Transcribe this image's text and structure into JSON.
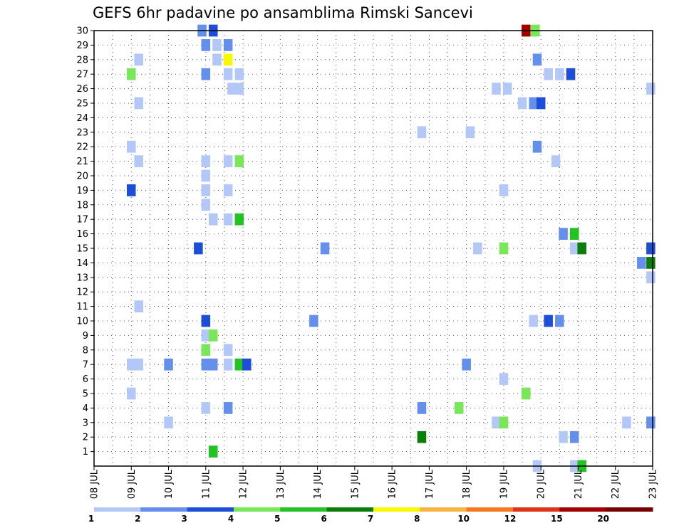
{
  "chart_data": {
    "type": "heatmap",
    "title": "GEFS 6hr padavine po ansamblima Rimski Sancevi",
    "xlabel": "",
    "ylabel": "",
    "x_ticks": [
      "08 JUL",
      "09 JUL",
      "10 JUL",
      "11 JUL",
      "12 JUL",
      "13 JUL",
      "14 JUL",
      "15 JUL",
      "16 JUL",
      "17 JUL",
      "18 JUL",
      "19 JUL",
      "20 JUL",
      "21 JUL",
      "22 JUL",
      "23 JUL"
    ],
    "xlim": [
      0,
      15
    ],
    "y_ticks": [
      "1",
      "2",
      "3",
      "4",
      "5",
      "6",
      "7",
      "8",
      "9",
      "10",
      "11",
      "12",
      "13",
      "14",
      "15",
      "16",
      "17",
      "18",
      "19",
      "20",
      "21",
      "22",
      "23",
      "24",
      "25",
      "26",
      "27",
      "28",
      "29",
      "30"
    ],
    "ylim": [
      0,
      30
    ],
    "grid": true,
    "colorbar": {
      "labels": [
        "1",
        "2",
        "3",
        "4",
        "5",
        "6",
        "7",
        "8",
        "10",
        "12",
        "15",
        "20"
      ],
      "colors": [
        "#b4c8f8",
        "#6490ec",
        "#1e4ed8",
        "#7ae65a",
        "#22c322",
        "#0a7d0a",
        "#f8f800",
        "#f8b440",
        "#f87820",
        "#e03418",
        "#a00000",
        "#780000"
      ]
    },
    "cells": [
      {
        "x": 2.9,
        "y": 30,
        "c": 2
      },
      {
        "x": 3.2,
        "y": 30,
        "c": 3
      },
      {
        "x": 11.6,
        "y": 30,
        "c": 11
      },
      {
        "x": 11.85,
        "y": 30,
        "c": 4
      },
      {
        "x": 3.0,
        "y": 29,
        "c": 2
      },
      {
        "x": 3.3,
        "y": 29,
        "c": 1
      },
      {
        "x": 3.6,
        "y": 29,
        "c": 2
      },
      {
        "x": 1.2,
        "y": 28,
        "c": 1
      },
      {
        "x": 3.3,
        "y": 28,
        "c": 1
      },
      {
        "x": 3.6,
        "y": 28,
        "c": 7
      },
      {
        "x": 11.9,
        "y": 28,
        "c": 2
      },
      {
        "x": 1.0,
        "y": 27,
        "c": 4
      },
      {
        "x": 3.0,
        "y": 27,
        "c": 2
      },
      {
        "x": 3.6,
        "y": 27,
        "c": 1
      },
      {
        "x": 3.9,
        "y": 27,
        "c": 1
      },
      {
        "x": 12.2,
        "y": 27,
        "c": 1
      },
      {
        "x": 12.5,
        "y": 27,
        "c": 1
      },
      {
        "x": 12.8,
        "y": 27,
        "c": 3
      },
      {
        "x": 3.7,
        "y": 26,
        "c": 1
      },
      {
        "x": 3.9,
        "y": 26,
        "c": 1
      },
      {
        "x": 10.8,
        "y": 26,
        "c": 1
      },
      {
        "x": 11.1,
        "y": 26,
        "c": 1
      },
      {
        "x": 14.95,
        "y": 26,
        "c": 1
      },
      {
        "x": 1.2,
        "y": 25,
        "c": 1
      },
      {
        "x": 11.5,
        "y": 25,
        "c": 1
      },
      {
        "x": 11.8,
        "y": 25,
        "c": 2
      },
      {
        "x": 12.0,
        "y": 25,
        "c": 3
      },
      {
        "x": 8.8,
        "y": 23,
        "c": 1
      },
      {
        "x": 10.1,
        "y": 23,
        "c": 1
      },
      {
        "x": 1.0,
        "y": 22,
        "c": 1
      },
      {
        "x": 11.9,
        "y": 22,
        "c": 2
      },
      {
        "x": 1.2,
        "y": 21,
        "c": 1
      },
      {
        "x": 3.0,
        "y": 21,
        "c": 1
      },
      {
        "x": 3.6,
        "y": 21,
        "c": 1
      },
      {
        "x": 3.9,
        "y": 21,
        "c": 4
      },
      {
        "x": 12.4,
        "y": 21,
        "c": 1
      },
      {
        "x": 3.0,
        "y": 20,
        "c": 1
      },
      {
        "x": 1.0,
        "y": 19,
        "c": 3
      },
      {
        "x": 3.0,
        "y": 19,
        "c": 1
      },
      {
        "x": 3.6,
        "y": 19,
        "c": 1
      },
      {
        "x": 11.0,
        "y": 19,
        "c": 1
      },
      {
        "x": 3.0,
        "y": 18,
        "c": 1
      },
      {
        "x": 3.2,
        "y": 17,
        "c": 1
      },
      {
        "x": 3.6,
        "y": 17,
        "c": 1
      },
      {
        "x": 3.9,
        "y": 17,
        "c": 5
      },
      {
        "x": 12.6,
        "y": 16,
        "c": 2
      },
      {
        "x": 12.9,
        "y": 16,
        "c": 5
      },
      {
        "x": 2.8,
        "y": 15,
        "c": 3
      },
      {
        "x": 6.2,
        "y": 15,
        "c": 2
      },
      {
        "x": 10.3,
        "y": 15,
        "c": 1
      },
      {
        "x": 11.0,
        "y": 15,
        "c": 4
      },
      {
        "x": 12.9,
        "y": 15,
        "c": 1
      },
      {
        "x": 13.1,
        "y": 15,
        "c": 6
      },
      {
        "x": 14.95,
        "y": 15,
        "c": 3
      },
      {
        "x": 14.7,
        "y": 14,
        "c": 2
      },
      {
        "x": 14.95,
        "y": 14,
        "c": 6
      },
      {
        "x": 14.95,
        "y": 13,
        "c": 1
      },
      {
        "x": 1.2,
        "y": 11,
        "c": 1
      },
      {
        "x": 3.0,
        "y": 10,
        "c": 3
      },
      {
        "x": 5.9,
        "y": 10,
        "c": 2
      },
      {
        "x": 11.8,
        "y": 10,
        "c": 1
      },
      {
        "x": 12.2,
        "y": 10,
        "c": 3
      },
      {
        "x": 12.5,
        "y": 10,
        "c": 2
      },
      {
        "x": 3.0,
        "y": 9,
        "c": 1
      },
      {
        "x": 3.2,
        "y": 9,
        "c": 4
      },
      {
        "x": 3.0,
        "y": 8,
        "c": 4
      },
      {
        "x": 3.6,
        "y": 8,
        "c": 1
      },
      {
        "x": 1.0,
        "y": 7,
        "c": 1
      },
      {
        "x": 1.2,
        "y": 7,
        "c": 1
      },
      {
        "x": 2.0,
        "y": 7,
        "c": 2
      },
      {
        "x": 3.0,
        "y": 7,
        "c": 2
      },
      {
        "x": 3.2,
        "y": 7,
        "c": 2
      },
      {
        "x": 3.6,
        "y": 7,
        "c": 1
      },
      {
        "x": 3.9,
        "y": 7,
        "c": 5
      },
      {
        "x": 4.1,
        "y": 7,
        "c": 3
      },
      {
        "x": 10.0,
        "y": 7,
        "c": 2
      },
      {
        "x": 11.0,
        "y": 6,
        "c": 1
      },
      {
        "x": 1.0,
        "y": 5,
        "c": 1
      },
      {
        "x": 11.6,
        "y": 5,
        "c": 4
      },
      {
        "x": 3.0,
        "y": 4,
        "c": 1
      },
      {
        "x": 3.6,
        "y": 4,
        "c": 2
      },
      {
        "x": 8.8,
        "y": 4,
        "c": 2
      },
      {
        "x": 9.8,
        "y": 4,
        "c": 4
      },
      {
        "x": 2.0,
        "y": 3,
        "c": 1
      },
      {
        "x": 10.8,
        "y": 3,
        "c": 1
      },
      {
        "x": 11.0,
        "y": 3,
        "c": 4
      },
      {
        "x": 14.3,
        "y": 3,
        "c": 1
      },
      {
        "x": 14.95,
        "y": 3,
        "c": 2
      },
      {
        "x": 8.8,
        "y": 2,
        "c": 6
      },
      {
        "x": 12.6,
        "y": 2,
        "c": 1
      },
      {
        "x": 12.9,
        "y": 2,
        "c": 2
      },
      {
        "x": 3.2,
        "y": 1,
        "c": 5
      },
      {
        "x": 11.9,
        "y": 0,
        "c": 1
      },
      {
        "x": 12.9,
        "y": 0,
        "c": 1
      },
      {
        "x": 13.1,
        "y": 0,
        "c": 5
      }
    ]
  }
}
